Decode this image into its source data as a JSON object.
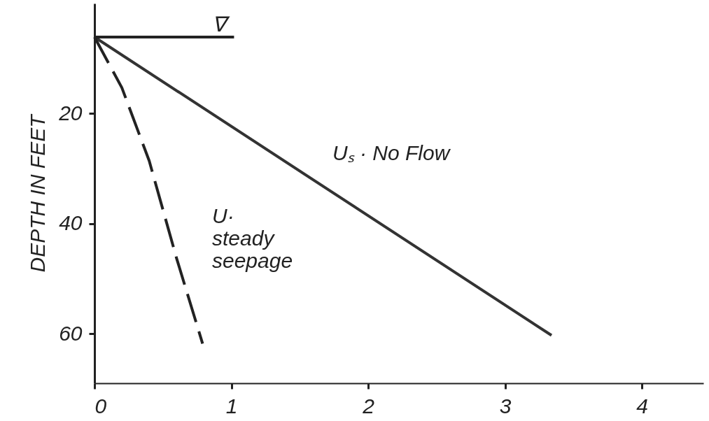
{
  "chart_data": {
    "type": "line",
    "ylabel": "DEPTH IN FEET",
    "xlim": [
      0,
      4.45
    ],
    "ylim": [
      69,
      0
    ],
    "xticks": [
      0,
      1,
      2,
      3,
      4
    ],
    "yticks": [
      20,
      40,
      60
    ],
    "grid": false,
    "marker": "none",
    "series": [
      {
        "color": "#333333",
        "line_style": "solid",
        "x": [
          0,
          3.34
        ],
        "values": [
          6.1,
          60.3
        ]
      },
      {
        "color": "#222222",
        "line_style": "dashed",
        "x": [
          0,
          0.2,
          0.4,
          0.6,
          0.79
        ],
        "values": [
          6.1,
          15.3,
          28.6,
          46.3,
          61.8
        ]
      },
      {
        "color": "#222222",
        "line_style": "solid",
        "x": [
          0,
          1.02
        ],
        "values": [
          6.1,
          6.1
        ]
      }
    ],
    "annotations": [
      "Uₛ · No Flow",
      "U·\nsteady\nseepage",
      "∇"
    ]
  }
}
